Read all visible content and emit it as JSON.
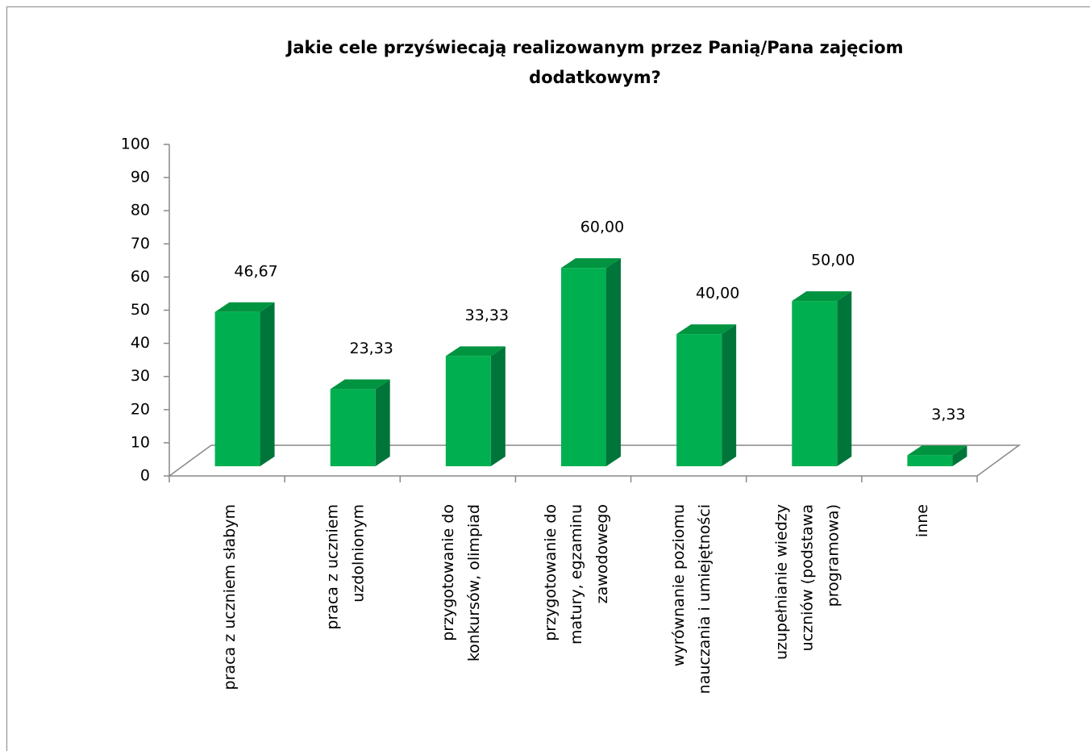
{
  "chart_data": {
    "type": "bar3d",
    "title": "Jakie cele przyświecają realizowanym przez Panią/Pana zajęciom\ndodatkowym?",
    "categories": [
      "praca z uczniem słabym",
      "praca z uczniem\nuzdolnionym",
      "przygotowanie do\nkonkursów, olimpiad",
      "przygotowanie do\nmatury, egzaminu\nzawodowego",
      "wyrównanie poziomu\nnauczania i umiejętności",
      "uzupełnianie wiedzy\nuczniów (podstawa\nprogramowa)",
      "inne"
    ],
    "values": [
      46.67,
      23.33,
      33.33,
      60,
      40,
      50,
      3.33
    ],
    "value_labels": [
      "46,67",
      "23,33",
      "33,33",
      "60,00",
      "40,00",
      "50,00",
      "3,33"
    ],
    "color": "#00b050",
    "ylim": [
      0,
      100
    ],
    "yticks": [
      0,
      10,
      20,
      30,
      40,
      50,
      60,
      70,
      80,
      90,
      100
    ]
  }
}
